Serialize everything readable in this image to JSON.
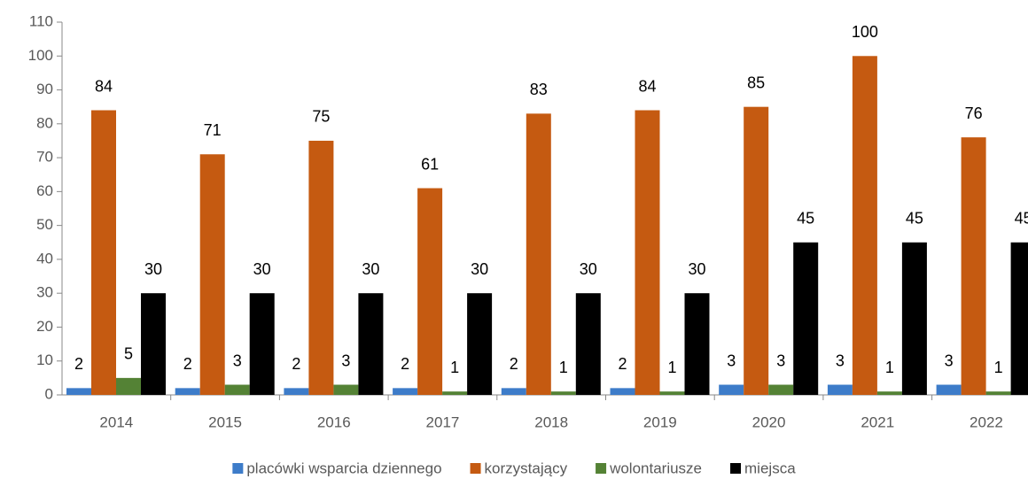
{
  "chart_data": {
    "type": "bar",
    "categories": [
      "2014",
      "2015",
      "2016",
      "2017",
      "2018",
      "2019",
      "2020",
      "2021",
      "2022"
    ],
    "series": [
      {
        "name": "placówki wsparcia dziennego",
        "color": "#3d7cc9",
        "values": [
          2,
          2,
          2,
          2,
          2,
          2,
          3,
          3,
          3
        ]
      },
      {
        "name": "korzystający",
        "color": "#c55a11",
        "values": [
          84,
          71,
          75,
          61,
          83,
          84,
          85,
          100,
          76
        ]
      },
      {
        "name": "wolontariusze",
        "color": "#548235",
        "values": [
          5,
          3,
          3,
          1,
          1,
          1,
          3,
          1,
          1
        ]
      },
      {
        "name": "miejsca",
        "color": "#000000",
        "values": [
          30,
          30,
          30,
          30,
          30,
          30,
          45,
          45,
          45
        ]
      }
    ],
    "ylim": [
      0,
      110
    ],
    "yticks": [
      0,
      10,
      20,
      30,
      40,
      50,
      60,
      70,
      80,
      90,
      100,
      110
    ],
    "grid": false,
    "legend": "bottom"
  }
}
